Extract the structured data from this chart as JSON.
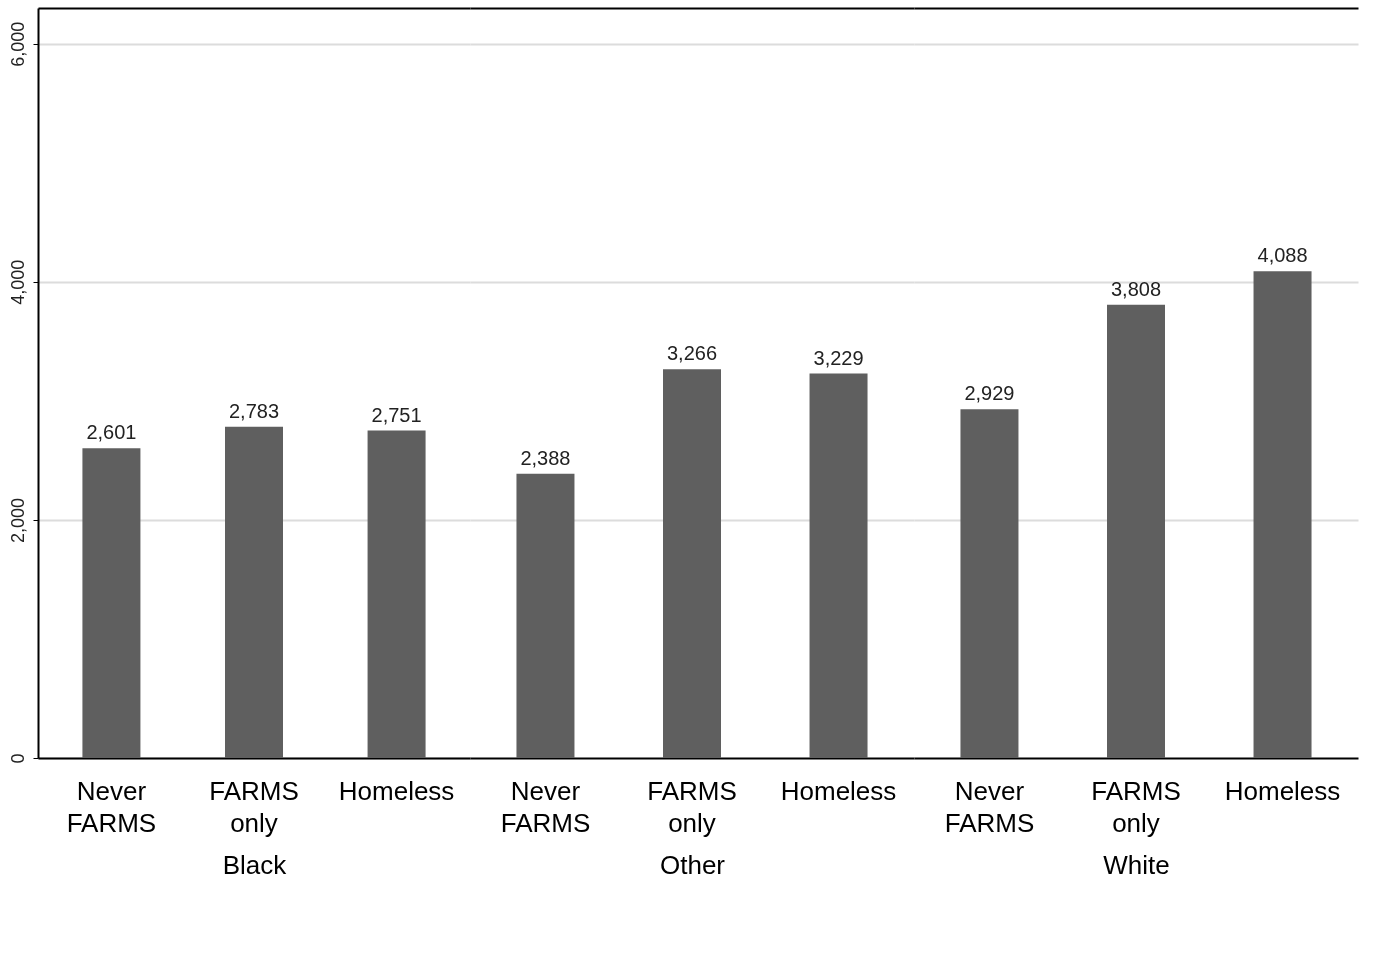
{
  "chart_data": [
    {
      "type": "bar",
      "xlabel": "Black",
      "categories": [
        "Never FARMS",
        "FARMS only",
        "Homeless"
      ],
      "values": [
        2601,
        2783,
        2751
      ],
      "value_labels": [
        "2,601",
        "2,783",
        "2,751"
      ],
      "color": "#5f5f5f",
      "ylim": [
        0,
        6300
      ],
      "yticks": [
        0,
        {
          "value": 2000,
          "label": "2,000"
        },
        {
          "value": 4000,
          "label": "4,000"
        },
        {
          "value": 6000,
          "label": "6,000"
        }
      ],
      "grid": "y"
    },
    {
      "type": "bar",
      "xlabel": "Other",
      "categories": [
        "Never FARMS",
        "FARMS only",
        "Homeless"
      ],
      "values": [
        2388,
        3266,
        3229
      ],
      "value_labels": [
        "2,388",
        "3,266",
        "3,229"
      ],
      "color": "#5f5f5f",
      "ylim": [
        0,
        6300
      ],
      "yticks": [
        2000,
        4000,
        6000
      ],
      "grid": "y",
      "tick_labels": "x"
    },
    {
      "type": "bar",
      "xlabel": "White",
      "categories": [
        "Never FARMS",
        "FARMS only",
        "Homeless"
      ],
      "values": [
        2929,
        3808,
        4088
      ],
      "value_labels": [
        "2,929",
        "3,808",
        "4,088"
      ],
      "color": "#5f5f5f",
      "ylim": [
        0,
        6300
      ],
      "yticks": [
        2000,
        4000,
        6000
      ],
      "grid": "y",
      "tick_labels": "x"
    }
  ]
}
